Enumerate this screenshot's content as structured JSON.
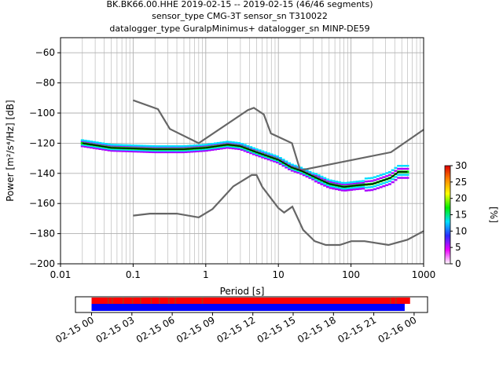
{
  "title_lines": [
    "BK.BK66.00.HHE   2019-02-15 -- 2019-02-15  (46/46 segments)",
    "sensor_type CMG-3T sensor_sn T310022",
    "datalogger_type GuralpMinimus+ datalogger_sn MINP-DE59"
  ],
  "chart_data": [
    {
      "type": "line",
      "name": "ppsd",
      "xlabel": "Period [s]",
      "ylabel": "Power [m²/s⁴/Hz] [dB]",
      "xscale": "log",
      "xlim": [
        0.01,
        1000
      ],
      "ylim": [
        -200,
        -50
      ],
      "x_ticks": [
        0.01,
        0.1,
        1,
        10,
        100,
        1000
      ],
      "x_tick_labels": [
        "0.01",
        "0.1",
        "1",
        "10",
        "100",
        "1000"
      ],
      "y_ticks": [
        -200,
        -180,
        -160,
        -140,
        -120,
        -100,
        -80,
        -60
      ],
      "y_tick_labels": [
        "−200",
        "−180",
        "−160",
        "−140",
        "−120",
        "−100",
        "−80",
        "−60"
      ],
      "grid": true,
      "noise_models": [
        {
          "label": "NHNM",
          "color": "#666666",
          "points": [
            [
              0.1,
              -91.5
            ],
            [
              0.22,
              -97.4
            ],
            [
              0.32,
              -110.5
            ],
            [
              0.8,
              -120
            ],
            [
              3.8,
              -98
            ],
            [
              4.6,
              -96.5
            ],
            [
              6.3,
              -101
            ],
            [
              7.9,
              -113.5
            ],
            [
              15.4,
              -120
            ],
            [
              20,
              -138
            ],
            [
              354.8,
              -126
            ],
            [
              1000,
              -111
            ]
          ]
        },
        {
          "label": "NLNM",
          "color": "#666666",
          "points": [
            [
              0.1,
              -168
            ],
            [
              0.17,
              -166.7
            ],
            [
              0.4,
              -166.7
            ],
            [
              0.8,
              -169.2
            ],
            [
              1.24,
              -163.7
            ],
            [
              2.4,
              -148.6
            ],
            [
              4.3,
              -141.1
            ],
            [
              5,
              -141.1
            ],
            [
              6,
              -149
            ],
            [
              10,
              -163
            ],
            [
              12,
              -166
            ],
            [
              15.6,
              -162.1
            ],
            [
              21.9,
              -177.5
            ],
            [
              31.6,
              -185
            ],
            [
              45,
              -187.5
            ],
            [
              70,
              -187.5
            ],
            [
              101,
              -185
            ],
            [
              154,
              -185
            ],
            [
              328,
              -187.5
            ],
            [
              600,
              -184
            ],
            [
              1000,
              -178.3
            ]
          ]
        }
      ],
      "mean_curve": {
        "color": "#000000",
        "points": [
          [
            0.02,
            -120
          ],
          [
            0.05,
            -123
          ],
          [
            0.2,
            -124
          ],
          [
            0.5,
            -124
          ],
          [
            1,
            -123
          ],
          [
            2,
            -121
          ],
          [
            3,
            -122
          ],
          [
            5,
            -126
          ],
          [
            10,
            -131
          ],
          [
            15,
            -136
          ],
          [
            20,
            -138
          ],
          [
            30,
            -142
          ],
          [
            50,
            -147
          ],
          [
            80,
            -149
          ],
          [
            120,
            -148
          ],
          [
            200,
            -147
          ],
          [
            350,
            -143
          ],
          [
            450,
            -139
          ],
          [
            600,
            -139
          ]
        ]
      },
      "psd_color_bands": [
        "#aa00ff",
        "#00ddff",
        "#00ee00"
      ],
      "colorbar": {
        "label": "[%]",
        "range": [
          0,
          30
        ],
        "ticks": [
          0,
          5,
          10,
          15,
          20,
          25,
          30
        ],
        "tick_labels": [
          "0",
          "5",
          "10",
          "15",
          "20",
          "25",
          "30"
        ],
        "colors": [
          "#ffffff",
          "#ee00ff",
          "#2a2aff",
          "#00e0ff",
          "#00ee00",
          "#ffff00",
          "#ff8800",
          "#dd0000"
        ]
      }
    },
    {
      "type": "timeline",
      "name": "data-coverage",
      "x_tick_labels": [
        "02-15 00",
        "02-15 03",
        "02-15 06",
        "02-15 09",
        "02-15 12",
        "02-15 15",
        "02-15 18",
        "02-15 21",
        "02-16 00"
      ],
      "x_ticks_hours": [
        0,
        3,
        6,
        9,
        12,
        15,
        18,
        21,
        24
      ],
      "xlim_hours": [
        -1.2,
        25
      ],
      "coverage_bar": {
        "color": "#ff0000",
        "start_hours": 0,
        "end_hours": 23.7
      },
      "processed_bar": {
        "color": "#0000ff",
        "start_hours": 0,
        "end_hours": 23.3
      },
      "gap_marks_hours": [
        1.2,
        1.5,
        2.3,
        3.0,
        3.6,
        4.4,
        5.0,
        5.7,
        6.2,
        8.2,
        22.2,
        22.6
      ]
    }
  ]
}
